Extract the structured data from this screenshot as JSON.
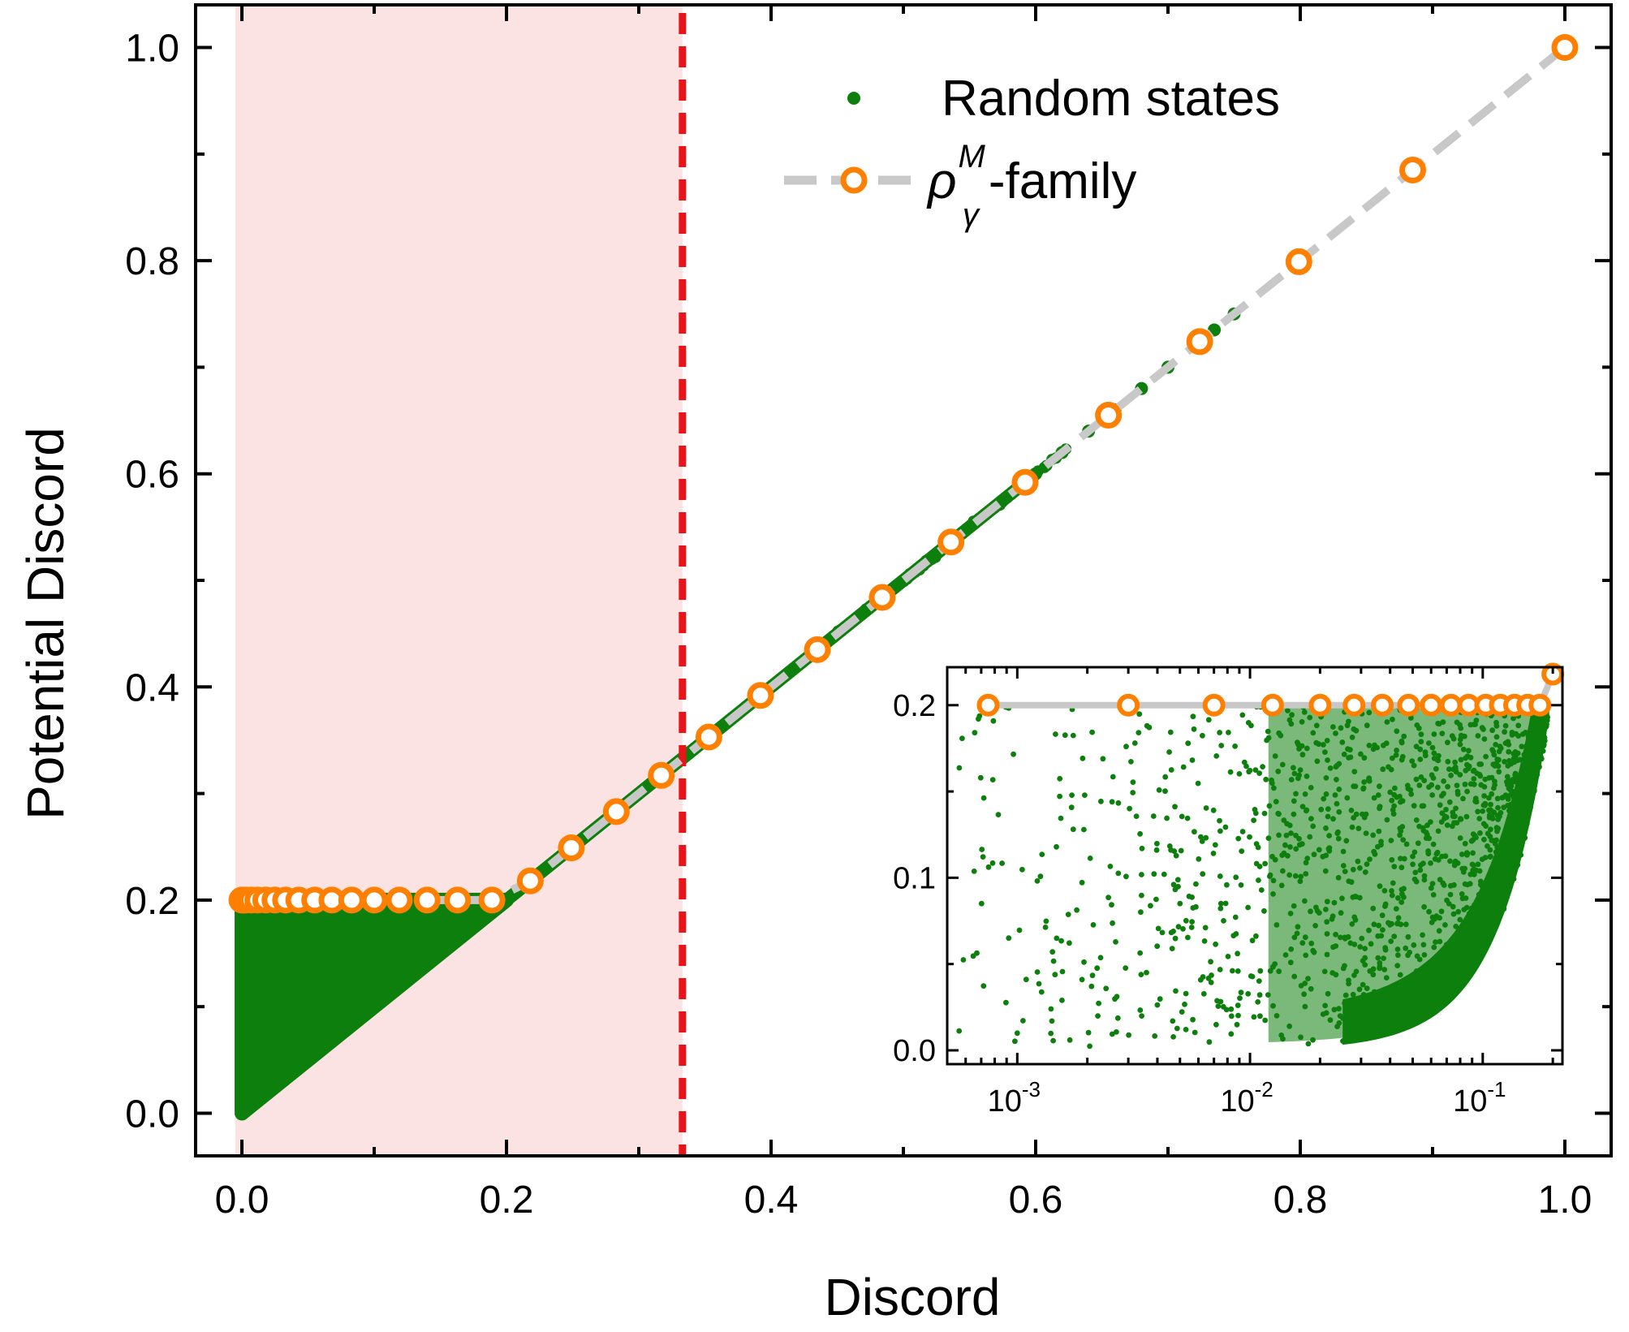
{
  "chart_data": [
    {
      "type": "scatter",
      "xlabel": "Discord",
      "ylabel": "Potential Discord",
      "xlim": [
        -0.035,
        1.035
      ],
      "ylim": [
        -0.04,
        1.04
      ],
      "xticks": [
        "0.0",
        "0.2",
        "0.4",
        "0.6",
        "0.8",
        "1.0"
      ],
      "yticks": [
        "0.0",
        "0.2",
        "0.4",
        "0.6",
        "0.8",
        "1.0"
      ],
      "legend": {
        "position": "top-right",
        "entries": [
          {
            "label": "Random states",
            "marker": "filled-dot"
          },
          {
            "label_rho": "ρ",
            "label_sup": "M",
            "label_sub": "γ",
            "label_rest": "-family",
            "marker": "open-circle-dashed-line"
          }
        ]
      },
      "shaded_region": {
        "x_from": -0.005,
        "x_to": 0.333,
        "color": "#fbe3e3"
      },
      "vertical_line": {
        "x": 0.333,
        "style": "dashed",
        "color": "#e8141a"
      },
      "colors": {
        "random": "#0d7f0d",
        "family_marker": "#ff8000",
        "family_line": "#c8c8c8"
      },
      "series": [
        {
          "name": "Random states",
          "description_region": {
            "lower_bound_line": "y = x for x in [0, 0.2]",
            "upper_bound": 0.2,
            "cluster_along": "y = x for x in [0.2, 0.75]"
          }
        },
        {
          "name": "ρ_γ^M-family",
          "x": [
            0.0,
            0.001,
            0.003,
            0.007,
            0.012,
            0.018,
            0.025,
            0.033,
            0.043,
            0.055,
            0.068,
            0.083,
            0.1,
            0.119,
            0.14,
            0.163,
            0.189,
            0.218,
            0.249,
            0.283,
            0.317,
            0.353,
            0.392,
            0.435,
            0.484,
            0.536,
            0.592,
            0.655,
            0.724,
            0.799,
            0.885,
            1.0
          ],
          "y": [
            0.2,
            0.2,
            0.2,
            0.2,
            0.2,
            0.2,
            0.2,
            0.2,
            0.2,
            0.2,
            0.2,
            0.2,
            0.2,
            0.2,
            0.2,
            0.2,
            0.2,
            0.218,
            0.249,
            0.283,
            0.317,
            0.353,
            0.392,
            0.435,
            0.484,
            0.536,
            0.592,
            0.655,
            0.724,
            0.799,
            0.885,
            1.0
          ]
        }
      ]
    },
    {
      "type": "scatter",
      "inset": true,
      "xscale": "log",
      "xlim": [
        0.0005,
        0.22
      ],
      "ylim": [
        -0.008,
        0.222
      ],
      "xticks": [
        {
          "base": "10",
          "exp": "-3",
          "value": 0.001
        },
        {
          "base": "10",
          "exp": "-2",
          "value": 0.01
        },
        {
          "base": "10",
          "exp": "-1",
          "value": 0.1
        }
      ],
      "yticks": [
        "0.0",
        "0.1",
        "0.2"
      ],
      "series": [
        {
          "name": "Random states",
          "description_region": {
            "upper_bound": 0.2,
            "lower_bound_curve": "approx y ≈ 1.6·x² style rising boundary"
          }
        },
        {
          "name": "ρ_γ^M-family",
          "x": [
            0.00075,
            0.003,
            0.007,
            0.0125,
            0.02,
            0.028,
            0.037,
            0.048,
            0.06,
            0.073,
            0.087,
            0.103,
            0.119,
            0.137,
            0.156,
            0.176,
            0.2
          ],
          "y": [
            0.2,
            0.2,
            0.2,
            0.2,
            0.2,
            0.2,
            0.2,
            0.2,
            0.2,
            0.2,
            0.2,
            0.2,
            0.2,
            0.2,
            0.2,
            0.2,
            0.218
          ]
        }
      ]
    }
  ]
}
